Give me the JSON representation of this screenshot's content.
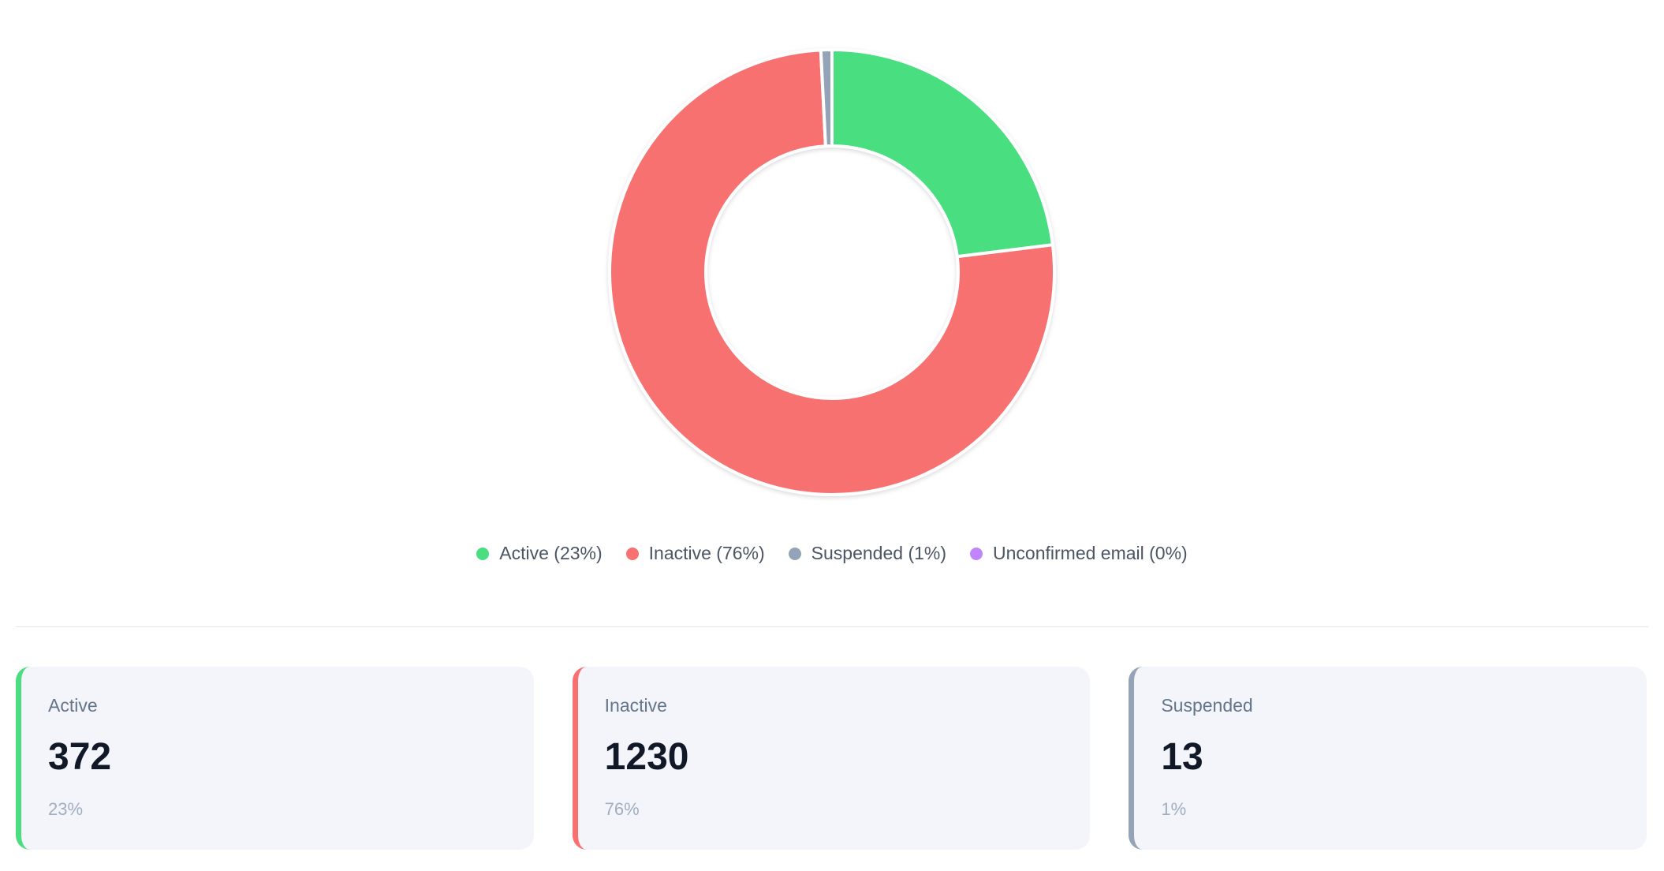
{
  "chart_data": {
    "type": "pie",
    "variant": "donut",
    "series": [
      {
        "name": "Active",
        "value": 372,
        "color": "#4ade80"
      },
      {
        "name": "Inactive",
        "value": 1230,
        "color": "#f87171"
      },
      {
        "name": "Suspended",
        "value": 13,
        "color": "#94a3b8"
      },
      {
        "name": "Unconfirmed email",
        "value": 0,
        "color": "#c084fc"
      }
    ],
    "legend": [
      "Active (23%)",
      "Inactive (76%)",
      "Suspended (1%)",
      "Unconfirmed email (0%)"
    ],
    "legend_position": "bottom"
  },
  "cards": [
    {
      "label": "Active",
      "value": "372",
      "percent": "23%",
      "color": "#4ade80"
    },
    {
      "label": "Inactive",
      "value": "1230",
      "percent": "76%",
      "color": "#f87171"
    },
    {
      "label": "Suspended",
      "value": "13",
      "percent": "1%",
      "color": "#94a3b8"
    }
  ]
}
